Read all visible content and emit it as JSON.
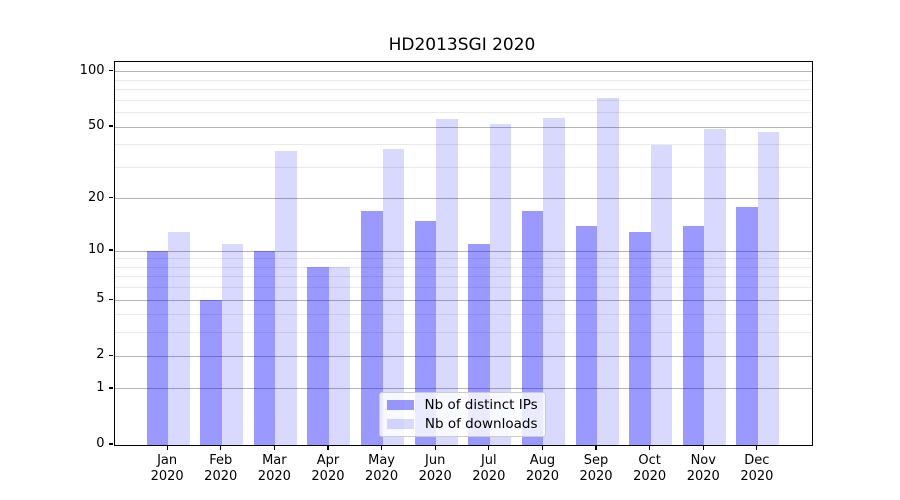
{
  "chart_data": {
    "type": "bar",
    "title": "HD2013SGI 2020",
    "categories": [
      "Jan",
      "Feb",
      "Mar",
      "Apr",
      "May",
      "Jun",
      "Jul",
      "Aug",
      "Sep",
      "Oct",
      "Nov",
      "Dec"
    ],
    "category_year": "2020",
    "series": [
      {
        "name": "Nb of distinct IPs",
        "color": "rgba(0,0,255,0.4)",
        "values": [
          10,
          5,
          10,
          8,
          17,
          15,
          11,
          17,
          14,
          13,
          14,
          18
        ]
      },
      {
        "name": "Nb of downloads",
        "color": "rgba(0,0,255,0.15)",
        "values": [
          13,
          11,
          37,
          8,
          38,
          55,
          52,
          56,
          72,
          40,
          49,
          47
        ]
      }
    ],
    "xlabel": "",
    "ylabel": "",
    "yscale": "log1p",
    "ylim": [
      0,
      113
    ],
    "yticks_major": [
      0,
      1,
      2,
      5,
      10,
      20,
      50,
      100
    ],
    "yticks_minor": [
      3,
      4,
      6,
      7,
      8,
      9,
      30,
      40,
      60,
      70,
      80,
      90
    ],
    "grid": true,
    "legend_position": "lower center",
    "colors": {
      "major_grid": "#b4b4b4",
      "minor_grid": "#e9e9e9",
      "spine": "#000000",
      "background": "#ffffff",
      "text": "#000000"
    }
  }
}
